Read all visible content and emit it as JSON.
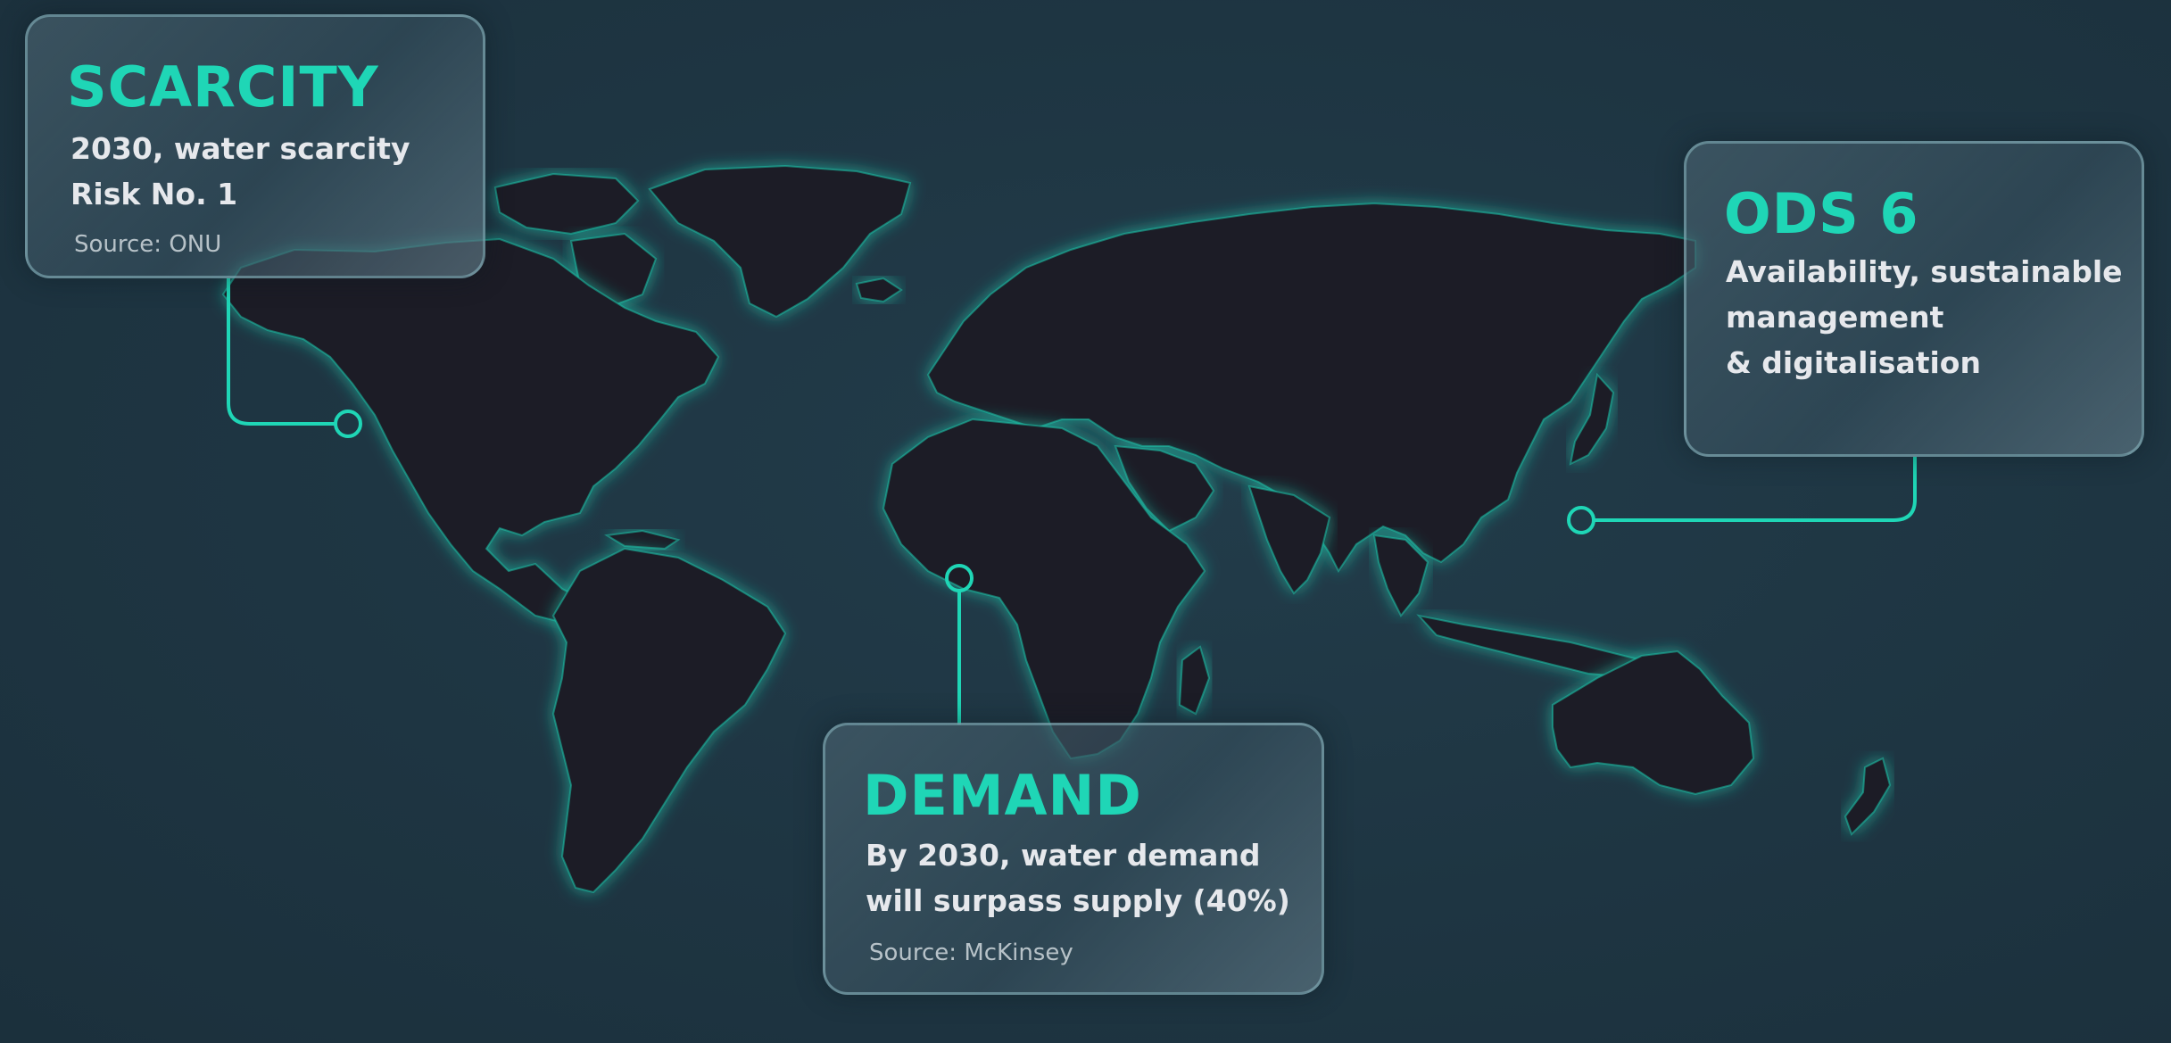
{
  "colors": {
    "background": "#1e3542",
    "accent": "#1fd6b6",
    "land": "#1d1c26",
    "card_border": "#8cb9c3",
    "card_text": "#e6e8ec",
    "source_text": "#b7c2c8"
  },
  "callouts": {
    "scarcity": {
      "title": "SCARCITY",
      "lines": [
        "2030, water scarcity",
        "Risk No. 1"
      ],
      "source": "Source: ONU"
    },
    "ods": {
      "title": "ODS 6",
      "lines": [
        "Availability, sustainable",
        "management",
        "& digitalisation"
      ]
    },
    "demand": {
      "title": "DEMAND",
      "lines": [
        "By 2030, water demand",
        "will surpass supply (40%)"
      ],
      "source": "Source: McKinsey"
    }
  }
}
